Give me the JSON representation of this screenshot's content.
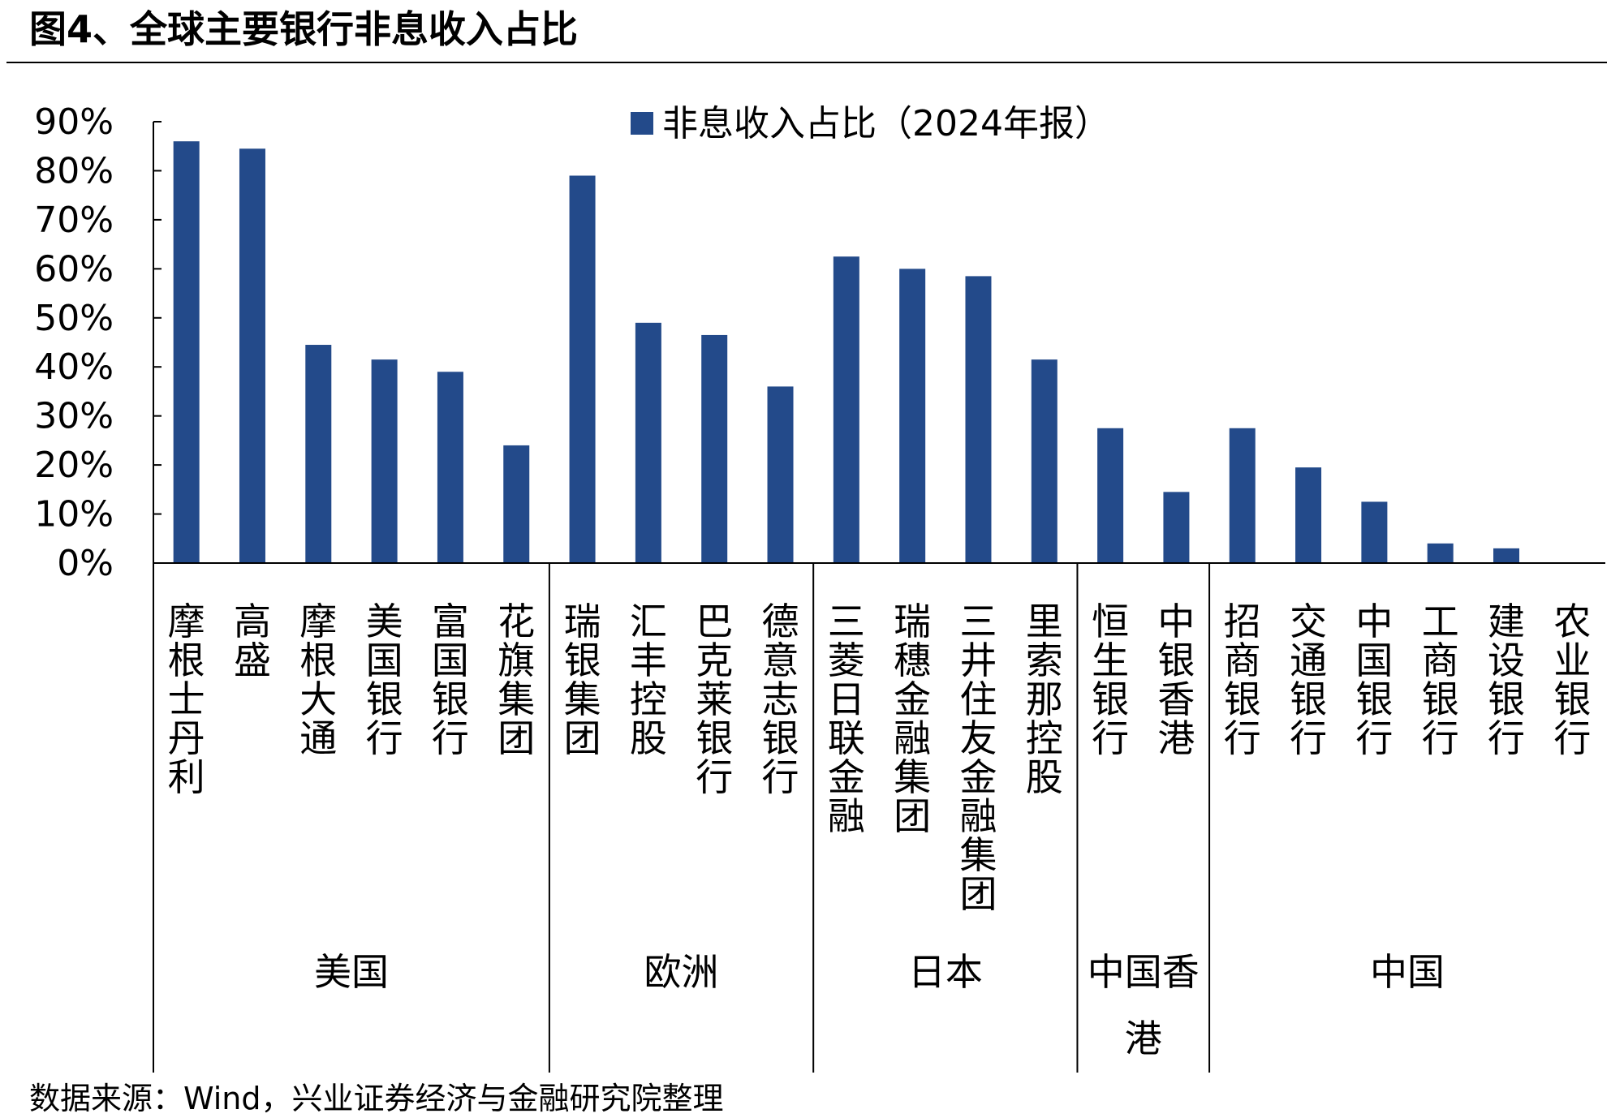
{
  "figure_title": "图4、全球主要银行非息收入占比",
  "source_note": "数据来源：Wind，兴业证券经济与金融研究院整理",
  "colors": {
    "bar": "#234A8A",
    "axis": "#000000"
  },
  "chart_data": {
    "type": "bar",
    "legend_position": "top-right",
    "grid": false,
    "series": [
      {
        "name": "非息收入占比（2024年报）",
        "values": [
          86,
          84.5,
          44.5,
          41.5,
          39,
          24,
          79,
          49,
          46.5,
          36,
          62.5,
          60,
          58.5,
          41.5,
          27.5,
          14.5,
          27.5,
          19.5,
          12.5,
          4,
          3,
          0
        ]
      }
    ],
    "categories": [
      "摩根士丹利",
      "高盛",
      "摩根大通",
      "美国银行",
      "富国银行",
      "花旗集团",
      "瑞银集团",
      "汇丰控股",
      "巴克莱银行",
      "德意志银行",
      "三菱日联金融",
      "瑞穗金融集团",
      "三井住友金融集团",
      "里索那控股",
      "恒生银行",
      "中银香港",
      "招商银行",
      "交通银行",
      "中国银行",
      "工商银行",
      "建设银行",
      "农业银行"
    ],
    "groups": [
      {
        "label": "美国",
        "count": 6
      },
      {
        "label": "欧洲",
        "count": 4
      },
      {
        "label": "日本",
        "count": 4
      },
      {
        "label": "中国香港",
        "count": 2
      },
      {
        "label": "中国",
        "count": 6
      }
    ],
    "ylim": [
      0,
      90
    ],
    "yticks": [
      "0%",
      "10%",
      "20%",
      "30%",
      "40%",
      "50%",
      "60%",
      "70%",
      "80%",
      "90%"
    ]
  }
}
